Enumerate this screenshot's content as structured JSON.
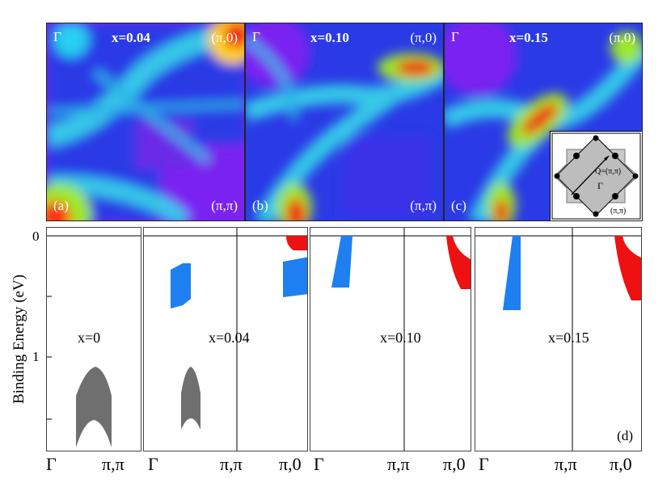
{
  "panels_top": [
    {
      "gamma": "Γ",
      "x_label": "x=0.04",
      "corner_tr": "(π,0)",
      "corner_br": "(π,π)",
      "tag": "(a)"
    },
    {
      "gamma": "Γ",
      "x_label": "x=0.10",
      "corner_tr": "(π,0)",
      "corner_br": "(π,π)",
      "tag": "(b)"
    },
    {
      "gamma": "Γ",
      "x_label": "x=0.15",
      "corner_tr": "(π,0)",
      "corner_br": "(π,π)",
      "tag": "(c)"
    }
  ],
  "inset": {
    "q_label": "Q=(π,π)",
    "gamma": "Γ",
    "corner": "(π,π)"
  },
  "bands": [
    {
      "x_label": "x=0"
    },
    {
      "x_label": "x=0.04"
    },
    {
      "x_label": "x=0.10"
    },
    {
      "x_label": "x=0.15"
    }
  ],
  "panel_d_tag": "(d)",
  "y_axis": {
    "label": "Binding Energy  (eV)",
    "ticks": [
      "0",
      "1"
    ]
  },
  "x_ticks": {
    "p1": [
      "Γ",
      "π,π"
    ],
    "p2": [
      "Γ",
      "π,π",
      "π,0"
    ],
    "p3": [
      "Γ",
      "π,π",
      "π,0"
    ],
    "p4": [
      "Γ",
      "π,π",
      "π,0"
    ]
  },
  "colors": {
    "gray_band": "#6f6f6f",
    "blue_band": "#1e7ff0",
    "red_band": "#ee1111"
  }
}
